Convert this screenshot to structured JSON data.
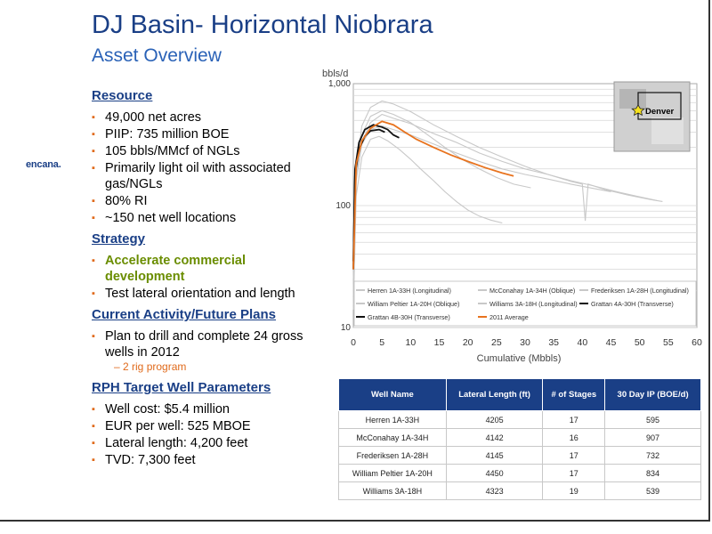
{
  "slide": {
    "title": "DJ Basin- Horizontal Niobrara",
    "subtitle": "Asset Overview",
    "logo": "encana."
  },
  "sections": {
    "resource": {
      "heading": "Resource",
      "bullets": [
        "49,000 net acres",
        "PIIP: 735 million BOE",
        "105 bbls/MMcf of NGLs",
        "Primarily light oil with associated gas/NGLs",
        "80% RI",
        "~150 net well locations"
      ]
    },
    "strategy": {
      "heading": "Strategy",
      "bullets": [
        "Accelerate commercial development",
        "Test lateral orientation and length"
      ]
    },
    "activity": {
      "heading": "Current Activity/Future Plans",
      "bullets": [
        "Plan to drill and complete 24 gross wells in 2012"
      ],
      "sub_bullet": "2 rig program"
    },
    "parameters": {
      "heading": "RPH Target Well Parameters",
      "bullets": [
        "Well cost: $5.4 million",
        "EUR per well: 525 MBOE",
        "Lateral length: 4,200 feet",
        "TVD: 7,300 feet"
      ]
    }
  },
  "chart_data": {
    "type": "line",
    "ylabel": "bbls/d",
    "xlabel": "Cumulative (Mbbls)",
    "yscale": "log",
    "ylim": [
      10,
      1000
    ],
    "xlim": [
      0,
      60
    ],
    "y_ticks": [
      "1,000",
      "100",
      "10"
    ],
    "x_ticks": [
      0,
      5,
      10,
      15,
      20,
      25,
      30,
      35,
      40,
      45,
      50,
      55,
      60
    ],
    "map_label": "Denver",
    "colors": {
      "gray": "#c8c8c8",
      "black": "#111111",
      "orange": "#e8731e"
    },
    "series": [
      {
        "name": "Herren 1A-33H (Longitudinal)",
        "color": "#c8c8c8",
        "points": [
          [
            0,
            20
          ],
          [
            0.5,
            170
          ],
          [
            1.5,
            330
          ],
          [
            3,
            480
          ],
          [
            5,
            560
          ],
          [
            7,
            520
          ],
          [
            10,
            470
          ],
          [
            14,
            390
          ],
          [
            18,
            330
          ],
          [
            22,
            270
          ],
          [
            26,
            230
          ],
          [
            30,
            200
          ],
          [
            34,
            180
          ],
          [
            38,
            160
          ],
          [
            42,
            145
          ],
          [
            46,
            130
          ],
          [
            50,
            118
          ],
          [
            53,
            110
          ]
        ]
      },
      {
        "name": "McConahay 1A-34H (Oblique)",
        "color": "#c8c8c8",
        "points": [
          [
            0,
            15
          ],
          [
            0.5,
            200
          ],
          [
            1.5,
            450
          ],
          [
            3,
            640
          ],
          [
            5,
            720
          ],
          [
            7,
            680
          ],
          [
            10,
            590
          ],
          [
            14,
            460
          ],
          [
            18,
            370
          ],
          [
            22,
            300
          ],
          [
            26,
            250
          ],
          [
            30,
            210
          ],
          [
            34,
            180
          ],
          [
            38,
            158
          ],
          [
            40,
            150
          ],
          [
            40.5,
            75
          ],
          [
            41,
            150
          ],
          [
            44,
            135
          ],
          [
            48,
            122
          ],
          [
            52,
            112
          ],
          [
            54,
            108
          ]
        ]
      },
      {
        "name": "Frederiksen 1A-28H (Longitudinal)",
        "color": "#c8c8c8",
        "points": [
          [
            0,
            18
          ],
          [
            0.5,
            160
          ],
          [
            1.5,
            320
          ],
          [
            3,
            420
          ],
          [
            5,
            450
          ],
          [
            7,
            420
          ],
          [
            10,
            380
          ],
          [
            14,
            320
          ],
          [
            18,
            270
          ],
          [
            22,
            230
          ],
          [
            26,
            200
          ],
          [
            30,
            180
          ],
          [
            34,
            165
          ],
          [
            38,
            150
          ],
          [
            42,
            138
          ],
          [
            45,
            130
          ]
        ]
      },
      {
        "name": "William Peltier 1A-20H (Oblique)",
        "color": "#c8c8c8",
        "points": [
          [
            0,
            25
          ],
          [
            0.5,
            190
          ],
          [
            1.5,
            380
          ],
          [
            3,
            540
          ],
          [
            5,
            600
          ],
          [
            7,
            560
          ],
          [
            10,
            480
          ],
          [
            13,
            380
          ],
          [
            16,
            300
          ],
          [
            19,
            240
          ],
          [
            22,
            200
          ],
          [
            25,
            170
          ],
          [
            28,
            150
          ],
          [
            31,
            140
          ]
        ]
      },
      {
        "name": "Williams 3A-18H (Longitudinal)",
        "color": "#c8c8c8",
        "points": [
          [
            0,
            14
          ],
          [
            0.5,
            120
          ],
          [
            1.5,
            250
          ],
          [
            3,
            350
          ],
          [
            4.5,
            370
          ],
          [
            6,
            340
          ],
          [
            8,
            290
          ],
          [
            10,
            240
          ],
          [
            12,
            195
          ],
          [
            14,
            160
          ],
          [
            16,
            130
          ],
          [
            18,
            108
          ],
          [
            20,
            92
          ],
          [
            22,
            82
          ],
          [
            24,
            76
          ],
          [
            26,
            72
          ]
        ]
      },
      {
        "name": "Grattan 4A-30H (Transverse)",
        "color": "#111111",
        "points": [
          [
            0,
            30
          ],
          [
            0.3,
            200
          ],
          [
            1,
            330
          ],
          [
            2,
            420
          ],
          [
            3.5,
            460
          ],
          [
            5,
            440
          ],
          [
            6,
            420
          ],
          [
            7,
            380
          ],
          [
            8,
            360
          ]
        ]
      },
      {
        "name": "Grattan 4B-30H (Transverse)",
        "color": "#111111",
        "points": [
          [
            0,
            35
          ],
          [
            0.3,
            180
          ],
          [
            1,
            290
          ],
          [
            2,
            370
          ],
          [
            3,
            410
          ],
          [
            4.5,
            420
          ],
          [
            5.5,
            400
          ]
        ]
      },
      {
        "name": "2011 Average",
        "color": "#e8731e",
        "points": [
          [
            0,
            30
          ],
          [
            0.5,
            220
          ],
          [
            1.5,
            340
          ],
          [
            3,
            430
          ],
          [
            5,
            490
          ],
          [
            7,
            460
          ],
          [
            9,
            400
          ],
          [
            11,
            350
          ],
          [
            14,
            300
          ],
          [
            17,
            260
          ],
          [
            20,
            230
          ],
          [
            23,
            205
          ],
          [
            26,
            185
          ],
          [
            28,
            175
          ]
        ]
      }
    ],
    "legend": [
      "Herren 1A-33H (Longitudinal)",
      "McConahay 1A-34H (Oblique)",
      "Frederiksen 1A-28H (Longitudinal)",
      "William Peltier 1A-20H (Oblique)",
      "Williams 3A-18H (Longitudinal)",
      "Grattan 4A-30H (Transverse)",
      "Grattan 4B-30H (Transverse)",
      "2011 Average"
    ]
  },
  "table": {
    "headers": [
      "Well Name",
      "Lateral Length (ft)",
      "# of Stages",
      "30 Day IP (BOE/d)"
    ],
    "rows": [
      [
        "Herren 1A-33H",
        "4205",
        "17",
        "595"
      ],
      [
        "McConahay 1A-34H",
        "4142",
        "16",
        "907"
      ],
      [
        "Frederiksen 1A-28H",
        "4145",
        "17",
        "732"
      ],
      [
        "William Peltier 1A-20H",
        "4450",
        "17",
        "834"
      ],
      [
        "Williams 3A-18H",
        "4323",
        "19",
        "539"
      ]
    ]
  }
}
